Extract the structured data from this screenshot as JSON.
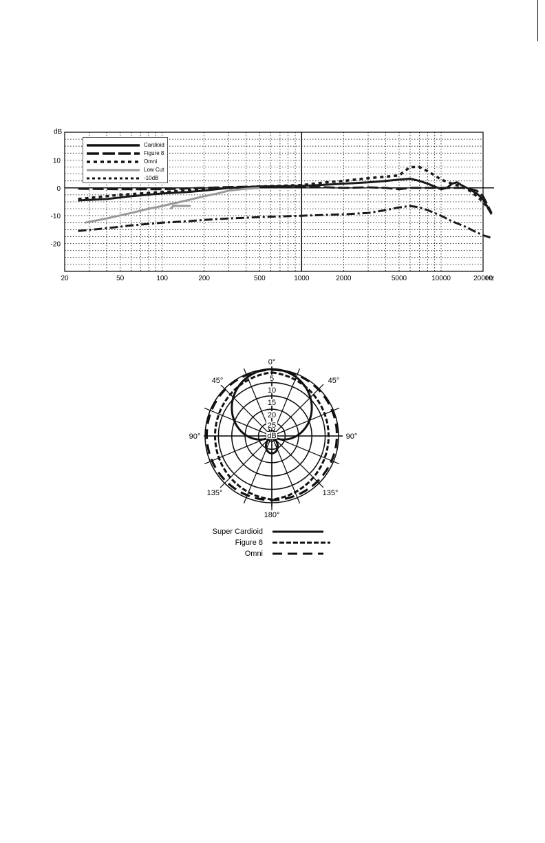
{
  "chart_data": [
    {
      "type": "line",
      "ylabel": "dB",
      "xunit": "Hz",
      "xscale": "log",
      "xlim": [
        20,
        20000
      ],
      "ylim": [
        -30,
        20
      ],
      "xticks": [
        "20",
        "50",
        "100",
        "200",
        "500",
        "1000",
        "2000",
        "5000",
        "10000",
        "20000"
      ],
      "yticks": [
        "10",
        "0",
        "-10",
        "-20"
      ],
      "grid": true,
      "legend": "top-left",
      "series": [
        {
          "name": "Cardioid",
          "style": "solid",
          "color": "#1a1a1a",
          "x": [
            25,
            40,
            60,
            100,
            150,
            200,
            300,
            500,
            1000,
            2000,
            3000,
            4000,
            5000,
            6000,
            7000,
            8000,
            9000,
            10000,
            11000,
            12000,
            13000,
            14000,
            16000,
            18000,
            20000,
            23000
          ],
          "y": [
            -4.5,
            -4,
            -3,
            -2,
            -1.5,
            -1,
            0,
            0.5,
            0.7,
            1.5,
            2,
            2.5,
            3,
            3.3,
            2.5,
            1.5,
            0.5,
            -0.5,
            0,
            1.5,
            2,
            1,
            -0.5,
            -2,
            -4,
            -9.5
          ]
        },
        {
          "name": "Figure 8",
          "style": "dashed",
          "color": "#1a1a1a",
          "x": [
            25,
            50,
            100,
            200,
            300,
            500,
            1000,
            2000,
            3000,
            4000,
            5000,
            6000,
            7000,
            8000,
            10000,
            12000,
            15000,
            18000,
            20000,
            23000
          ],
          "y": [
            -0.3,
            -0.5,
            -0.5,
            0,
            0.3,
            0.5,
            0.5,
            0,
            0.2,
            0,
            -0.5,
            0,
            0,
            0,
            0,
            0,
            0,
            -1,
            -3,
            -9
          ]
        },
        {
          "name": "Omni",
          "style": "dotted",
          "color": "#1a1a1a",
          "x": [
            25,
            50,
            100,
            200,
            300,
            500,
            1000,
            1500,
            2000,
            3000,
            4000,
            5000,
            6000,
            7000,
            8000,
            9000,
            10000,
            12000,
            14000,
            16000,
            18000,
            20000,
            23000
          ],
          "y": [
            -4,
            -2.5,
            -1.5,
            -0.5,
            0,
            0.5,
            1,
            2,
            2.5,
            3.5,
            4,
            4.5,
            7.5,
            7.5,
            6,
            4.5,
            3,
            1.5,
            0.5,
            -1,
            -3,
            -5,
            -9
          ]
        },
        {
          "name": "Low Cut",
          "style": "solid",
          "color": "#999999",
          "x": [
            28,
            40,
            60,
            80,
            100,
            150,
            200,
            250,
            300,
            400,
            500
          ],
          "y": [
            -12.5,
            -11,
            -9,
            -7.5,
            -6.5,
            -4.5,
            -3,
            -2,
            -1,
            -0.3,
            0
          ]
        },
        {
          "name": "-10dB",
          "style": "dashdot",
          "color": "#1a1a1a",
          "x": [
            25,
            40,
            60,
            100,
            150,
            200,
            300,
            500,
            1000,
            2000,
            3000,
            4000,
            5000,
            6000,
            7000,
            8000,
            10000,
            12000,
            15000,
            18000,
            20000,
            23000
          ],
          "y": [
            -15.5,
            -14.5,
            -13.5,
            -12.5,
            -12,
            -11.5,
            -11,
            -10.5,
            -10,
            -9.5,
            -9,
            -8,
            -7,
            -6.5,
            -7,
            -8,
            -10,
            -12,
            -14,
            -16,
            -17,
            -18
          ]
        }
      ],
      "legend_entries": [
        "Cardioid",
        "Figure 8",
        "Omni",
        "Low Cut",
        "-10dB"
      ]
    },
    {
      "type": "polar",
      "angle_labels": [
        "0°",
        "45°",
        "45°",
        "90°",
        "90°",
        "135°",
        "135°",
        "180°"
      ],
      "radial_labels": [
        "5",
        "10",
        "15",
        "20",
        "25",
        "dB"
      ],
      "series": [
        {
          "name": "Super Cardioid",
          "style": "solid"
        },
        {
          "name": "Figure 8",
          "style": "dashed"
        },
        {
          "name": "Omni",
          "style": "longdash"
        }
      ]
    }
  ]
}
